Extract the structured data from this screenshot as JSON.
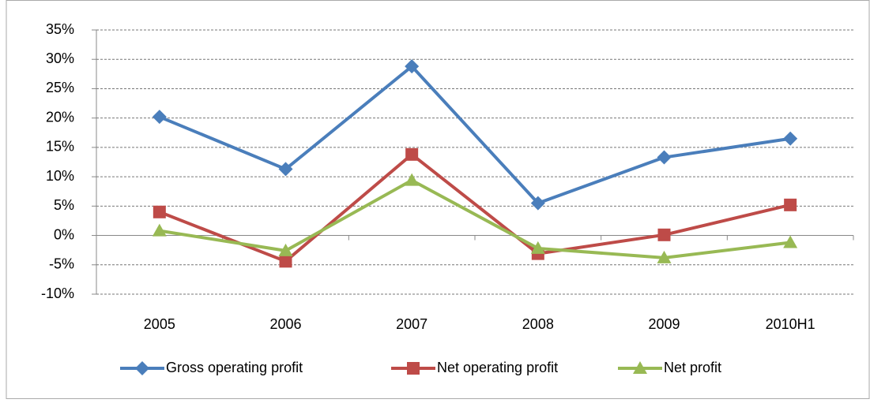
{
  "chart_data": {
    "type": "line",
    "categories": [
      "2005",
      "2006",
      "2007",
      "2008",
      "2009",
      "2010H1"
    ],
    "series": [
      {
        "name": "Gross operating profit",
        "color": "#4a7ebb",
        "marker": "diamond",
        "values": [
          20.2,
          11.3,
          28.8,
          5.5,
          13.3,
          16.5
        ]
      },
      {
        "name": "Net operating profit",
        "color": "#be4b48",
        "marker": "square",
        "values": [
          4.0,
          -4.4,
          13.8,
          -3.1,
          0.1,
          5.2
        ]
      },
      {
        "name": "Net profit",
        "color": "#98b954",
        "marker": "triangle",
        "values": [
          0.8,
          -2.6,
          9.4,
          -2.2,
          -3.8,
          -1.2
        ]
      }
    ],
    "ylim": [
      -10,
      35
    ],
    "yticks": [
      {
        "value": -10,
        "label": "-10%"
      },
      {
        "value": -5,
        "label": "-5%"
      },
      {
        "value": 0,
        "label": "0%"
      },
      {
        "value": 5,
        "label": "5%"
      },
      {
        "value": 10,
        "label": "10%"
      },
      {
        "value": 15,
        "label": "15%"
      },
      {
        "value": 20,
        "label": "20%"
      },
      {
        "value": 25,
        "label": "25%"
      },
      {
        "value": 30,
        "label": "30%"
      },
      {
        "value": 35,
        "label": "35%"
      }
    ],
    "grid": true,
    "legend": "bottom"
  }
}
